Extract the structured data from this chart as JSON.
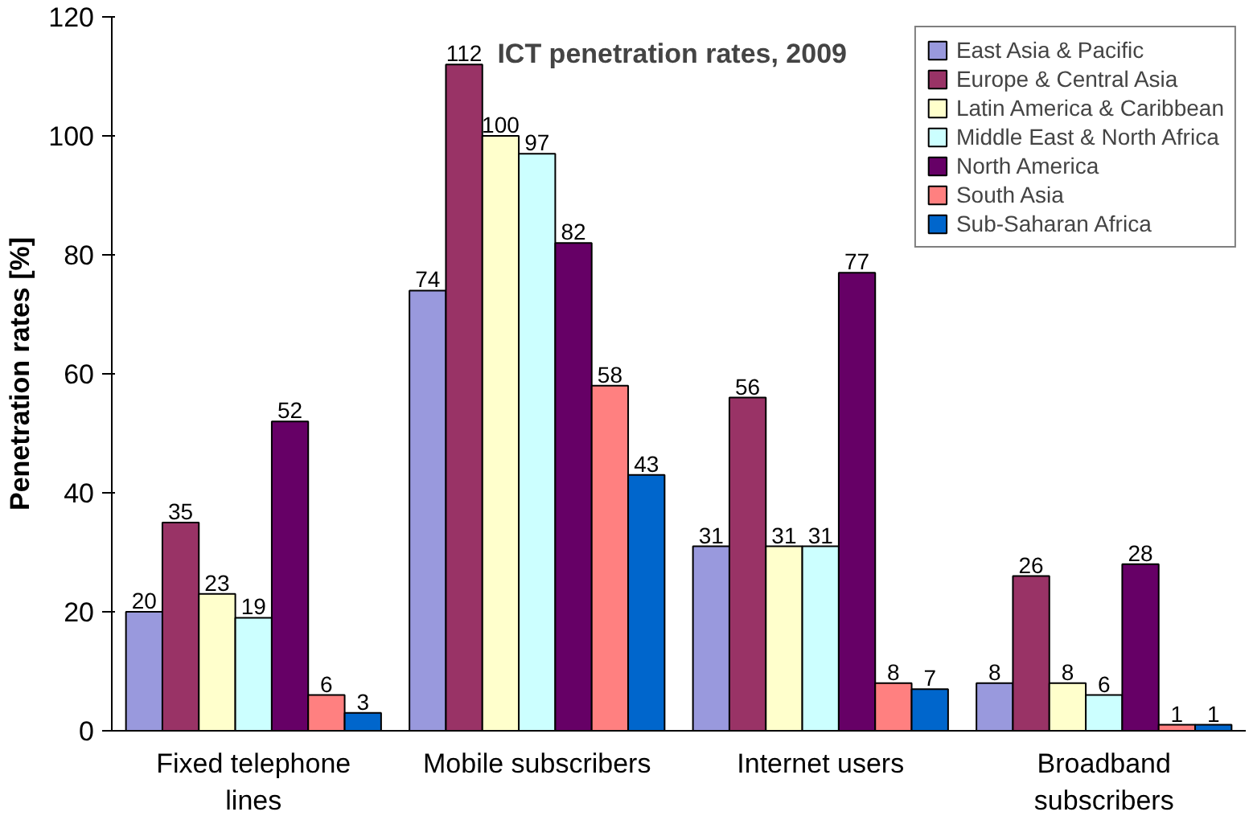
{
  "chart_data": {
    "type": "bar",
    "title": "ICT penetration rates, 2009",
    "ylabel": "Penetration rates [%]",
    "categories": [
      "Fixed telephone\nlines",
      "Mobile subscribers",
      "Internet users",
      "Broadband\nsubscribers"
    ],
    "series": [
      {
        "name": "East Asia & Pacific",
        "color": "#9999dd",
        "values": [
          20,
          74,
          31,
          8
        ]
      },
      {
        "name": "Europe & Central Asia",
        "color": "#993366",
        "values": [
          35,
          112,
          56,
          26
        ]
      },
      {
        "name": "Latin America & Caribbean",
        "color": "#ffffcc",
        "values": [
          23,
          100,
          31,
          8
        ]
      },
      {
        "name": "Middle East & North Africa",
        "color": "#ccffff",
        "values": [
          19,
          97,
          31,
          6
        ]
      },
      {
        "name": "North America",
        "color": "#660066",
        "values": [
          52,
          82,
          77,
          28
        ]
      },
      {
        "name": "South Asia",
        "color": "#ff8080",
        "values": [
          6,
          58,
          8,
          1
        ]
      },
      {
        "name": "Sub-Saharan Africa",
        "color": "#0066cc",
        "values": [
          3,
          43,
          7,
          1
        ]
      }
    ],
    "ylim": [
      0,
      120
    ],
    "yticks": [
      0,
      20,
      40,
      60,
      80,
      100,
      120
    ],
    "grid": false,
    "legend": "top right",
    "data_labels": true
  }
}
